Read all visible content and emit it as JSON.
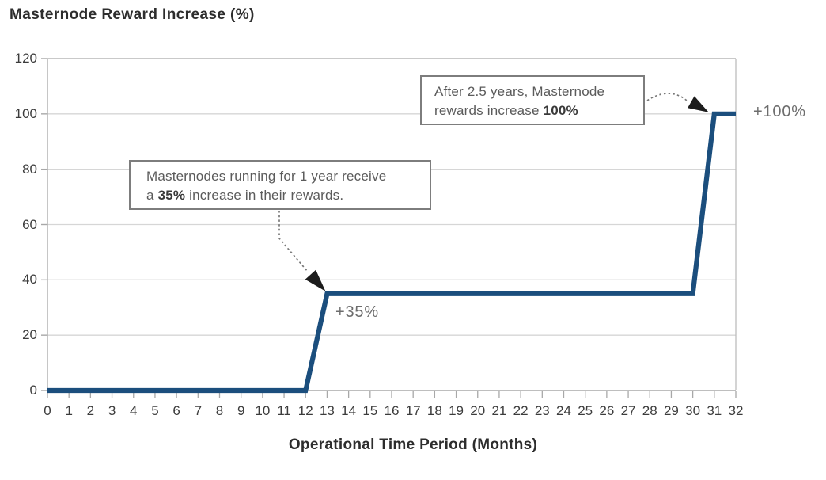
{
  "title": "Masternode Reward Increase (%)",
  "chart_data": {
    "type": "line",
    "title": "Masternode Reward Increase (%)",
    "xlabel": "Operational Time Period (Months)",
    "ylabel": "Masternode Reward Increase (%)",
    "x": [
      0,
      12,
      13,
      30,
      31,
      32
    ],
    "y": [
      0,
      0,
      35,
      35,
      100,
      100
    ],
    "xlim": [
      0,
      32
    ],
    "ylim": [
      0,
      120
    ],
    "xticks": [
      0,
      1,
      2,
      3,
      4,
      5,
      6,
      7,
      8,
      9,
      10,
      11,
      12,
      13,
      14,
      15,
      16,
      17,
      18,
      19,
      20,
      21,
      22,
      23,
      24,
      25,
      26,
      27,
      28,
      29,
      30,
      31,
      32
    ],
    "yticks": [
      0,
      20,
      40,
      60,
      80,
      100,
      120
    ],
    "grid": "horizontal",
    "legend": "none",
    "line_color": "#1b4e7d",
    "point_labels": [
      {
        "text": "+35%",
        "x": 13,
        "y": 35
      },
      {
        "text": "+100%",
        "x": 31,
        "y": 100
      }
    ],
    "annotations": [
      {
        "text": "Masternodes running for 1 year receive a 35% increase in their rewards.",
        "bold_part": "35%",
        "target_x": 13,
        "target_y": 35
      },
      {
        "text": "After 2.5 years, Masternode rewards increase 100%",
        "bold_part": "100%",
        "target_x": 31,
        "target_y": 100
      }
    ]
  },
  "annotations": {
    "box35": {
      "line1": "Masternodes running for 1 year receive",
      "line2_pre": "a ",
      "line2_bold": "35%",
      "line2_post": " increase in their rewards."
    },
    "box100": {
      "line1": "After 2.5 years, Masternode",
      "line2_pre": "rewards increase ",
      "line2_bold": "100%",
      "line2_post": ""
    },
    "label35": "+35%",
    "label100": "+100%"
  },
  "colors": {
    "line": "#1b4e7d",
    "grid": "#d6d6d6",
    "axis": "#a8a8a8",
    "top_border": "#a9a9a9",
    "right_border": "#bdbdbd",
    "tick_text": "#3c3c3c",
    "annotation_text": "#5b5b5b",
    "annotation_bold": "#3a3a3a",
    "box_border": "#7d7d7d",
    "point_label": "#6d6d6d",
    "arrow_dash": "#787878",
    "arrow_head": "#1c1c1c",
    "title_text": "#2d2d2d"
  }
}
